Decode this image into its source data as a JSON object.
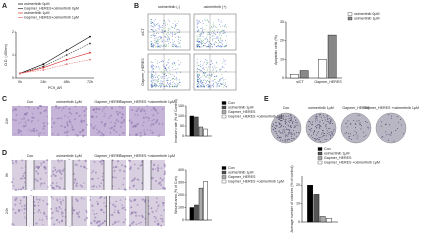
{
  "panel_labels": [
    "A",
    "B",
    "C",
    "D",
    "E"
  ],
  "images": {
    "B": {
      "columns": [
        "osimertinib (-)",
        "osimertinib (+)"
      ],
      "rows": [
        "siCT",
        "Gapmer_HERES"
      ]
    },
    "C": {
      "columns": [
        "Con",
        "osimertinib 1μM",
        "Gapmer_HERES",
        "Gapmer_HERES +osimertinib 1μM"
      ],
      "rows": [
        "24h"
      ]
    },
    "D": {
      "columns": [
        "Con",
        "osimertinib 1μM",
        "Gapmer_HERES",
        "Gapmer_HERES +osimertinib 1μM"
      ],
      "rows": [
        "0h",
        "24h"
      ]
    },
    "E": {
      "columns": [
        "Con",
        "osimertinib 1μM",
        "Gapmer_HERES",
        "Gapmer_HERES +osimertinib 1μM"
      ]
    }
  },
  "chart_data": [
    {
      "type": "line",
      "x_label": "PC9_AR",
      "y_label": "O.D. (450nm)",
      "categories": [
        "0h",
        "24h",
        "48h",
        "72h"
      ],
      "ylim": [
        0,
        2
      ],
      "yticks": [
        0,
        1,
        2
      ],
      "series": [
        {
          "name": "osimertinib 0μM",
          "color": "#000000",
          "values": [
            0.2,
            0.6,
            1.2,
            1.8
          ]
        },
        {
          "name": "Gapmer_HERES+osimertinib 0μM",
          "color": "#333333",
          "values": [
            0.2,
            0.5,
            1.0,
            1.5
          ]
        },
        {
          "name": "osimertinib 1μM",
          "color": "#d62728",
          "values": [
            0.2,
            0.45,
            0.8,
            1.1
          ]
        },
        {
          "name": "Gapmer_HERES+osimertinib 1μM",
          "color": "#e87474",
          "values": [
            0.2,
            0.35,
            0.6,
            0.8
          ]
        }
      ]
    },
    {
      "type": "bar",
      "y_label": "Apoptotic cells (%)",
      "categories": [
        "siCT",
        "Gapmer_HERES"
      ],
      "ylim": [
        0,
        30
      ],
      "yticks": [
        0,
        10,
        20,
        30
      ],
      "series": [
        {
          "name": "osimertinib 0μM",
          "color": "#ffffff",
          "values": [
            2,
            10
          ]
        },
        {
          "name": "osimertinib 1μM",
          "color": "#888888",
          "values": [
            4,
            23
          ]
        }
      ]
    },
    {
      "type": "bar",
      "y_label": "Invasion rate (% of Control)",
      "ylim": [
        0,
        150
      ],
      "yticks": [
        0,
        50,
        100,
        150
      ],
      "series": [
        {
          "name": "Con",
          "color": "#000000",
          "values": [
            100
          ]
        },
        {
          "name": "osimertinib 1μM",
          "color": "#555555",
          "values": [
            95
          ]
        },
        {
          "name": "Gapmer_HERES",
          "color": "#aaaaaa",
          "values": [
            45
          ]
        },
        {
          "name": "Gapmer_HERES +osimertinib 1μM",
          "color": "#ffffff",
          "values": [
            35
          ]
        }
      ]
    },
    {
      "type": "bar",
      "y_label": "Wound area (% of Con)",
      "ylim": [
        0,
        400
      ],
      "yticks": [
        0,
        100,
        200,
        300,
        400
      ],
      "series": [
        {
          "name": "Con",
          "color": "#000000",
          "values": [
            100
          ]
        },
        {
          "name": "osimertinib 1μM",
          "color": "#555555",
          "values": [
            120
          ]
        },
        {
          "name": "Gapmer_HERES",
          "color": "#aaaaaa",
          "values": [
            255
          ]
        },
        {
          "name": "Gapmer_HERES +osimertinib 1μM",
          "color": "#ffffff",
          "values": [
            310
          ]
        }
      ]
    },
    {
      "type": "bar",
      "y_label": "Average number of colonies (% of control)",
      "ylim": [
        0,
        25
      ],
      "yticks": [
        0,
        10,
        20
      ],
      "series": [
        {
          "name": "Con",
          "color": "#000000",
          "values": [
            20
          ]
        },
        {
          "name": "osimertinib 1μM",
          "color": "#555555",
          "values": [
            15
          ]
        },
        {
          "name": "Gapmer_HERES",
          "color": "#aaaaaa",
          "values": [
            3
          ]
        },
        {
          "name": "Gapmer_HERES +osimertinib 1μM",
          "color": "#ffffff",
          "values": [
            2
          ]
        }
      ]
    }
  ]
}
